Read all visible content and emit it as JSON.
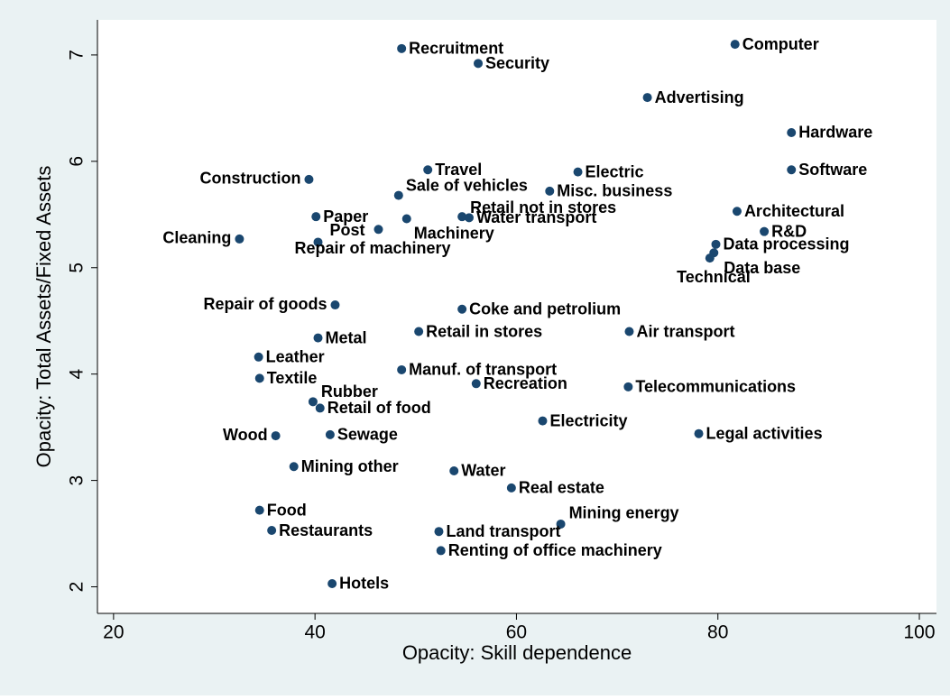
{
  "chart_data": {
    "type": "scatter",
    "xlabel": "Opacity: Skill dependence",
    "ylabel": "Opacity: Total Assets/Fixed Assets",
    "color": "#1a476f",
    "xlim": [
      18.4,
      101.7
    ],
    "ylim": [
      1.75,
      7.33
    ],
    "xticks": [
      20,
      40,
      60,
      80,
      100
    ],
    "yticks": [
      2,
      3,
      4,
      5,
      6,
      7
    ],
    "labels": [
      "Recruitment",
      "Computer",
      "Security",
      "Advertising",
      "Hardware",
      "Software",
      "Travel",
      "Electric",
      "Construction",
      "Sale of vehicles",
      "Misc. business",
      "Retail not in stores",
      "Water transport",
      "Architectural",
      "Paper",
      "Machinery",
      "Post",
      "Cleaning",
      "Repair of machinery",
      "R&D",
      "Data processing",
      "Data base",
      "Technical",
      "Repair of goods",
      "Coke and petrolium",
      "Metal",
      "Retail in stores",
      "Air transport",
      "Leather",
      "Textile",
      "Manuf. of transport",
      "Recreation",
      "Telecommunications",
      "Rubber",
      "Retail of food",
      "Electricity",
      "Wood",
      "Sewage",
      "Legal activities",
      "Mining other",
      "Water",
      "Real estate",
      "Food",
      "Mining energy",
      "Restaurants",
      "Land transport",
      "Renting of office machinery",
      "Hotels"
    ],
    "x": [
      48.6,
      81.7,
      56.2,
      73.0,
      87.3,
      87.3,
      51.2,
      66.1,
      39.4,
      48.3,
      63.3,
      54.6,
      55.3,
      81.9,
      40.1,
      49.1,
      46.3,
      32.5,
      40.3,
      84.6,
      79.8,
      79.6,
      79.2,
      42.0,
      54.6,
      40.3,
      50.3,
      71.2,
      34.4,
      34.5,
      48.6,
      56.0,
      71.1,
      39.8,
      40.5,
      62.6,
      36.1,
      41.5,
      78.1,
      37.9,
      53.8,
      59.5,
      34.5,
      64.4,
      35.7,
      52.3,
      52.5,
      41.7
    ],
    "values": [
      7.06,
      7.1,
      6.92,
      6.6,
      6.27,
      5.92,
      5.92,
      5.9,
      5.83,
      5.68,
      5.72,
      5.48,
      5.47,
      5.53,
      5.48,
      5.46,
      5.36,
      5.27,
      5.24,
      5.34,
      5.22,
      5.14,
      5.09,
      4.65,
      4.61,
      4.34,
      4.4,
      4.4,
      4.16,
      3.96,
      4.04,
      3.91,
      3.88,
      3.74,
      3.68,
      3.56,
      3.42,
      3.43,
      3.44,
      3.13,
      3.09,
      2.93,
      2.72,
      2.59,
      2.53,
      2.52,
      2.34,
      2.03
    ]
  }
}
